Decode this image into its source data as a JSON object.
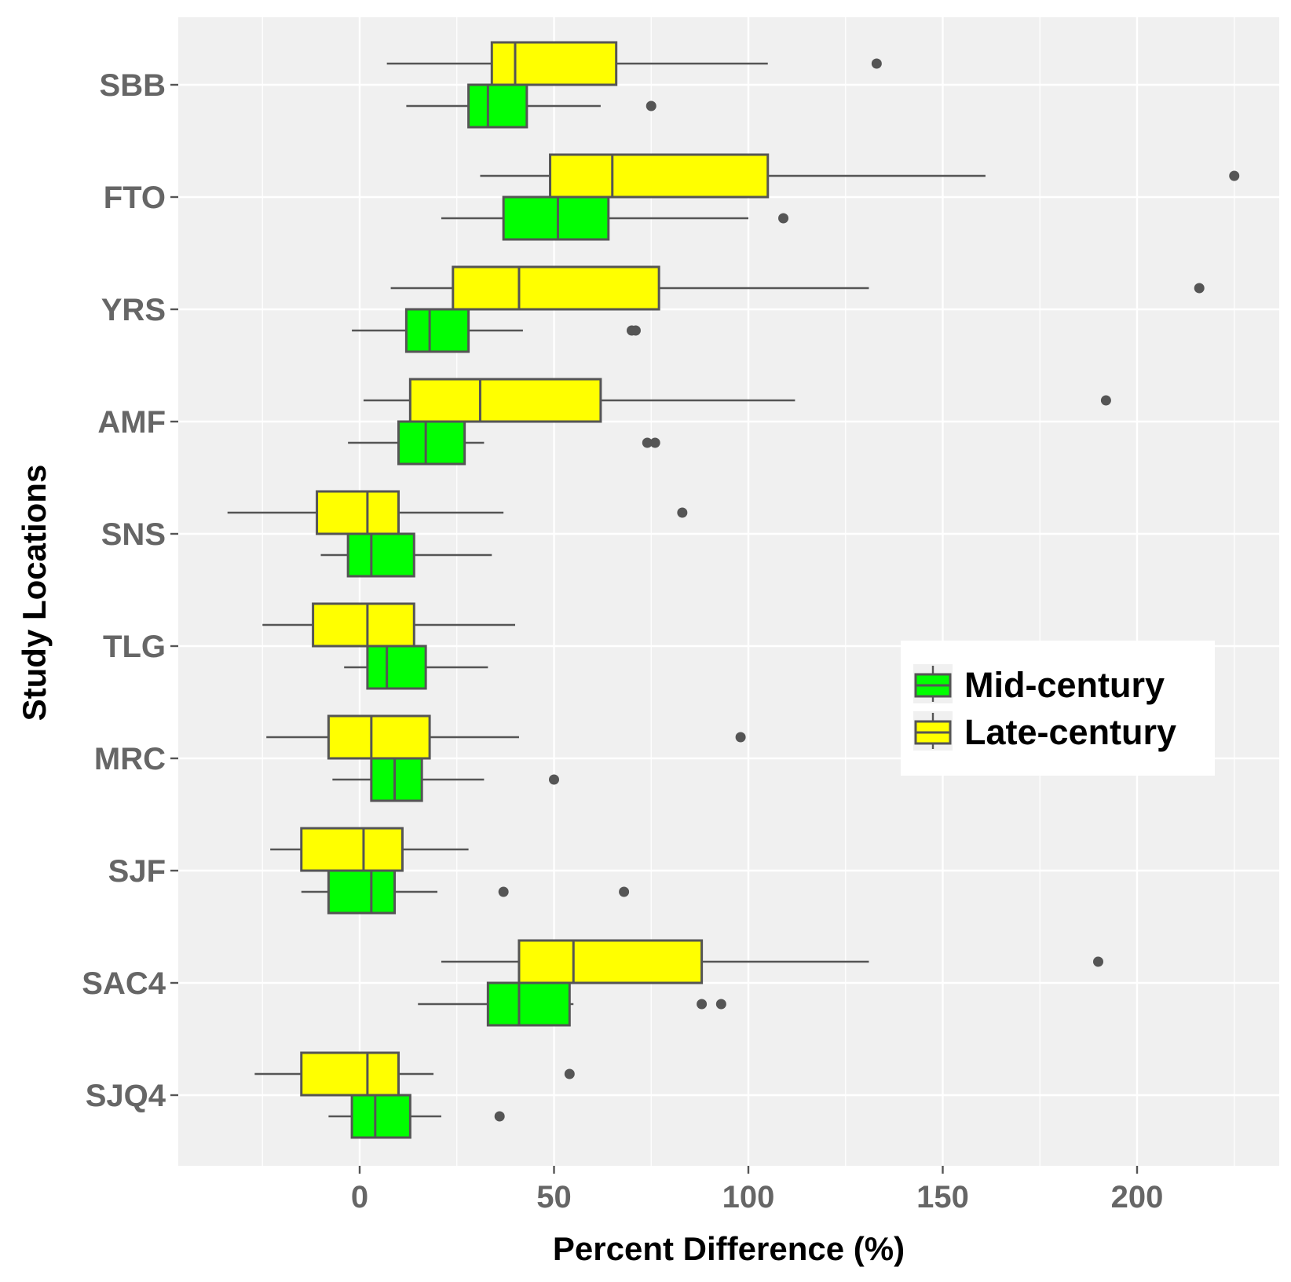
{
  "chart_data": {
    "type": "boxplot",
    "orientation": "horizontal",
    "title": "",
    "xlabel": "Percent Difference (%)",
    "ylabel": "Study Locations",
    "xlim": [
      -47,
      237
    ],
    "x_ticks": [
      0,
      50,
      100,
      150,
      200
    ],
    "x_minor_ticks": [
      -25,
      25,
      75,
      125,
      175,
      225
    ],
    "categories": [
      "SBB",
      "FTO",
      "YRS",
      "AMF",
      "SNS",
      "TLG",
      "MRC",
      "SJF",
      "SAC4",
      "SJQ4"
    ],
    "grid": true,
    "legend": {
      "position": "right",
      "entries": [
        {
          "key": "mid",
          "label": "Mid-century",
          "color": "#00ff00"
        },
        {
          "key": "late",
          "label": "Late-century",
          "color": "#ffff00"
        }
      ]
    },
    "series": [
      {
        "name": "Late-century",
        "key": "late",
        "color": "#ffff00",
        "boxes": [
          {
            "category": "SBB",
            "whisker_low": 7,
            "q1": 34,
            "median": 40,
            "q3": 66,
            "whisker_high": 105,
            "outliers": [
              133
            ]
          },
          {
            "category": "FTO",
            "whisker_low": 31,
            "q1": 49,
            "median": 65,
            "q3": 105,
            "whisker_high": 161,
            "outliers": [
              225
            ]
          },
          {
            "category": "YRS",
            "whisker_low": 8,
            "q1": 24,
            "median": 41,
            "q3": 77,
            "whisker_high": 131,
            "outliers": [
              216
            ]
          },
          {
            "category": "AMF",
            "whisker_low": 1,
            "q1": 13,
            "median": 31,
            "q3": 62,
            "whisker_high": 112,
            "outliers": [
              192
            ]
          },
          {
            "category": "SNS",
            "whisker_low": -34,
            "q1": -11,
            "median": 2,
            "q3": 10,
            "whisker_high": 37,
            "outliers": [
              83
            ]
          },
          {
            "category": "TLG",
            "whisker_low": -25,
            "q1": -12,
            "median": 2,
            "q3": 14,
            "whisker_high": 40,
            "outliers": []
          },
          {
            "category": "MRC",
            "whisker_low": -24,
            "q1": -8,
            "median": 3,
            "q3": 18,
            "whisker_high": 41,
            "outliers": [
              98
            ]
          },
          {
            "category": "SJF",
            "whisker_low": -23,
            "q1": -15,
            "median": 1,
            "q3": 11,
            "whisker_high": 28,
            "outliers": []
          },
          {
            "category": "SAC4",
            "whisker_low": 21,
            "q1": 41,
            "median": 55,
            "q3": 88,
            "whisker_high": 131,
            "outliers": [
              190
            ]
          },
          {
            "category": "SJQ4",
            "whisker_low": -27,
            "q1": -15,
            "median": 2,
            "q3": 10,
            "whisker_high": 19,
            "outliers": [
              54
            ]
          }
        ]
      },
      {
        "name": "Mid-century",
        "key": "mid",
        "color": "#00ff00",
        "boxes": [
          {
            "category": "SBB",
            "whisker_low": 12,
            "q1": 28,
            "median": 33,
            "q3": 43,
            "whisker_high": 62,
            "outliers": [
              75
            ]
          },
          {
            "category": "FTO",
            "whisker_low": 21,
            "q1": 37,
            "median": 51,
            "q3": 64,
            "whisker_high": 100,
            "outliers": [
              109
            ]
          },
          {
            "category": "YRS",
            "whisker_low": -2,
            "q1": 12,
            "median": 18,
            "q3": 28,
            "whisker_high": 42,
            "outliers": [
              70,
              71
            ]
          },
          {
            "category": "AMF",
            "whisker_low": -3,
            "q1": 10,
            "median": 17,
            "q3": 27,
            "whisker_high": 32,
            "outliers": [
              74,
              76
            ]
          },
          {
            "category": "SNS",
            "whisker_low": -10,
            "q1": -3,
            "median": 3,
            "q3": 14,
            "whisker_high": 34,
            "outliers": []
          },
          {
            "category": "TLG",
            "whisker_low": -4,
            "q1": 2,
            "median": 7,
            "q3": 17,
            "whisker_high": 33,
            "outliers": []
          },
          {
            "category": "MRC",
            "whisker_low": -7,
            "q1": 3,
            "median": 9,
            "q3": 16,
            "whisker_high": 32,
            "outliers": [
              50
            ]
          },
          {
            "category": "SJF",
            "whisker_low": -15,
            "q1": -8,
            "median": 3,
            "q3": 9,
            "whisker_high": 20,
            "outliers": [
              37,
              68
            ]
          },
          {
            "category": "SAC4",
            "whisker_low": 15,
            "q1": 33,
            "median": 41,
            "q3": 54,
            "whisker_high": 55,
            "outliers": [
              88,
              93
            ]
          },
          {
            "category": "SJQ4",
            "whisker_low": -8,
            "q1": -2,
            "median": 4,
            "q3": 13,
            "whisker_high": 21,
            "outliers": [
              36
            ]
          }
        ]
      }
    ]
  }
}
